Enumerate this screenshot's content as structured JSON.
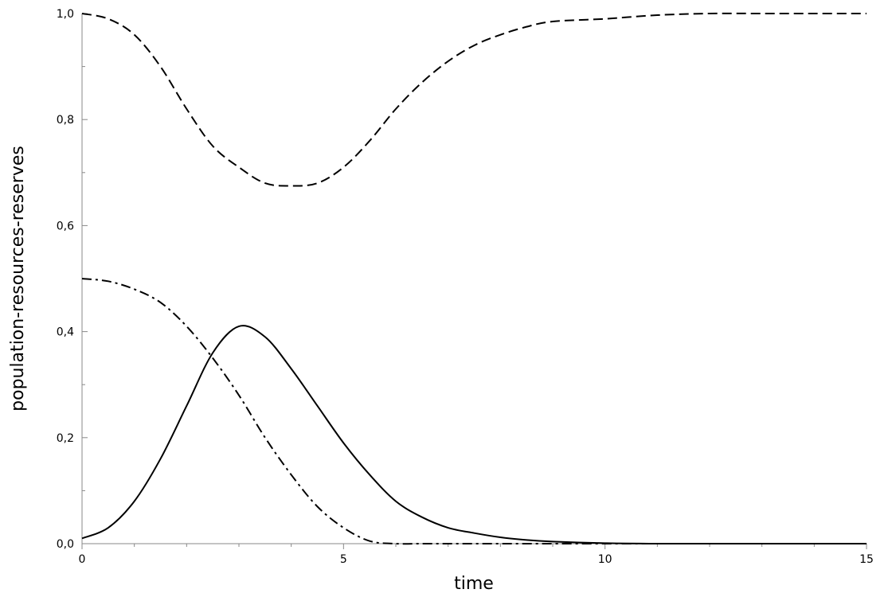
{
  "chart_data": {
    "type": "line",
    "x_label": "time",
    "y_label": "population-resources-reserves",
    "x": [
      0,
      0.5,
      1,
      1.5,
      2,
      2.5,
      3,
      3.5,
      4,
      4.5,
      5,
      5.5,
      6,
      6.5,
      7,
      7.5,
      8,
      8.5,
      9,
      10,
      11,
      12,
      13,
      14,
      15
    ],
    "series": [
      {
        "color": "#000000",
        "dash": "solid",
        "values": [
          0.01,
          0.03,
          0.08,
          0.16,
          0.26,
          0.36,
          0.41,
          0.39,
          0.33,
          0.26,
          0.19,
          0.13,
          0.08,
          0.05,
          0.03,
          0.02,
          0.012,
          0.007,
          0.004,
          0.001,
          0,
          0,
          0,
          0,
          0
        ]
      },
      {
        "color": "#000000",
        "dash": "dashed",
        "values": [
          1.0,
          0.99,
          0.96,
          0.9,
          0.82,
          0.75,
          0.71,
          0.68,
          0.675,
          0.68,
          0.71,
          0.76,
          0.82,
          0.87,
          0.91,
          0.94,
          0.96,
          0.975,
          0.985,
          0.99,
          0.997,
          1.0,
          1.0,
          1.0,
          1.0
        ]
      },
      {
        "color": "#000000",
        "dash": "dashdot",
        "values": [
          0.5,
          0.495,
          0.48,
          0.455,
          0.41,
          0.35,
          0.28,
          0.2,
          0.13,
          0.07,
          0.03,
          0.005,
          0,
          0,
          0,
          0,
          0,
          0,
          0,
          0,
          0,
          0,
          0,
          0,
          0
        ]
      }
    ],
    "xlim": [
      0,
      15
    ],
    "ylim": [
      0,
      1
    ],
    "xticks": [
      0,
      5,
      10,
      15
    ],
    "xminorticks": [
      1,
      2,
      3,
      4,
      6,
      7,
      8,
      9,
      11,
      12,
      13,
      14
    ],
    "yticks": [
      {
        "value": 0,
        "label": "0,0"
      },
      {
        "value": 0.2,
        "label": "0,2"
      },
      {
        "value": 0.4,
        "label": "0,4"
      },
      {
        "value": 0.6,
        "label": "0,6"
      },
      {
        "value": 0.8,
        "label": "0,8"
      },
      {
        "value": 1,
        "label": "1,0"
      }
    ],
    "yminorticks": [
      0.1,
      0.3,
      0.5,
      0.7,
      0.9
    ],
    "grid": false
  }
}
